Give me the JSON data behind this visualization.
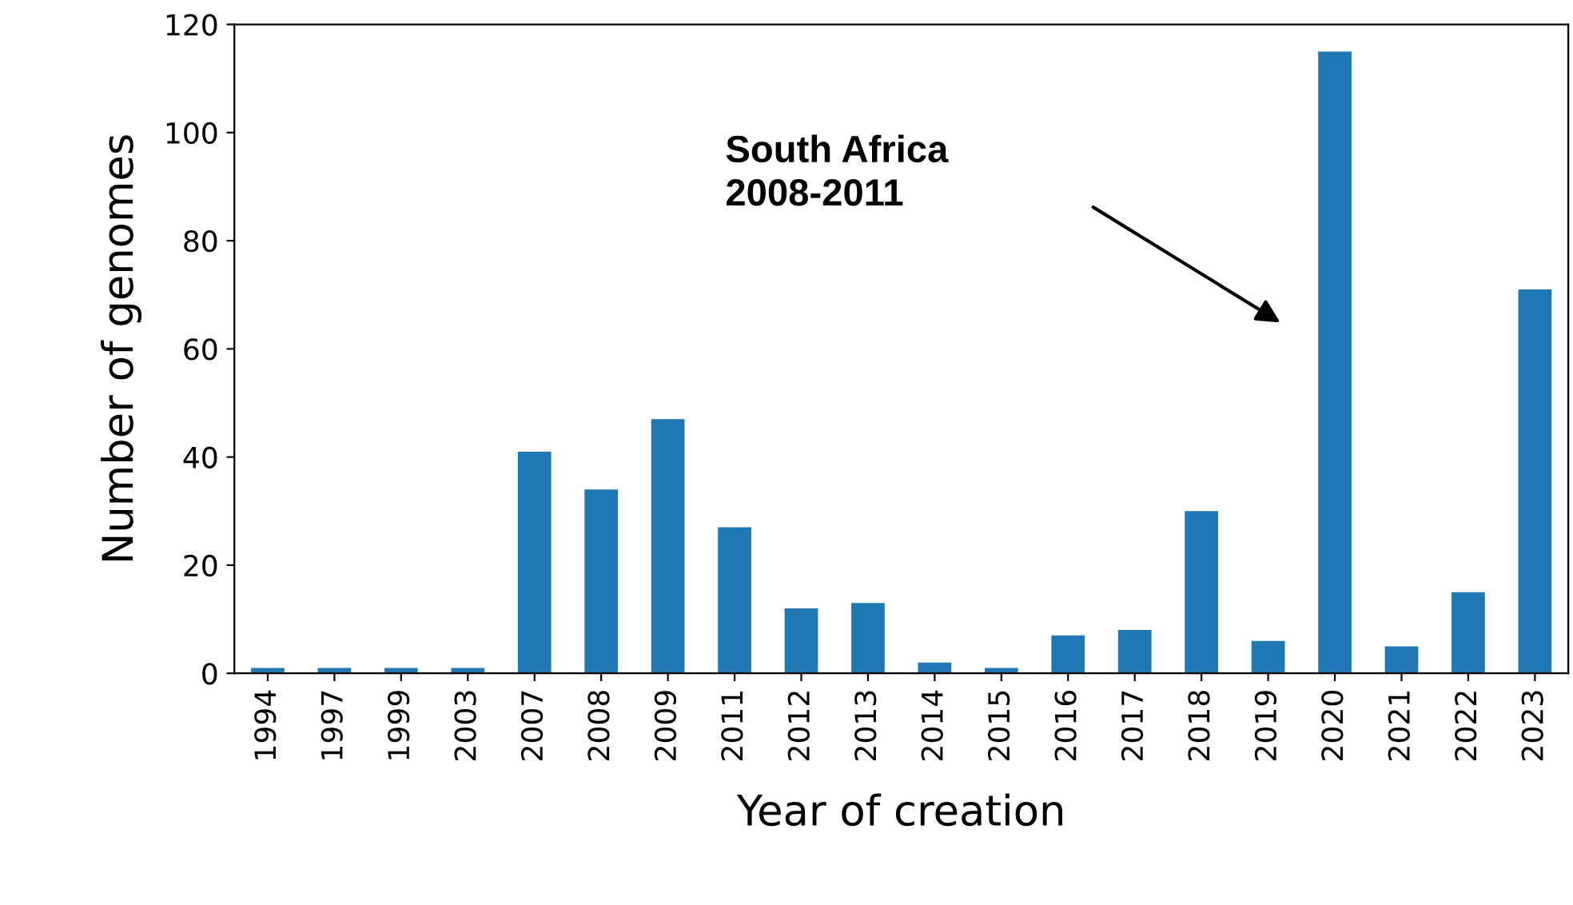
{
  "chart_data": {
    "type": "bar",
    "xlabel": "Year of creation",
    "ylabel": "Number of genomes",
    "categories": [
      "1994",
      "1997",
      "1999",
      "2003",
      "2007",
      "2008",
      "2009",
      "2011",
      "2012",
      "2013",
      "2014",
      "2015",
      "2016",
      "2017",
      "2018",
      "2019",
      "2020",
      "2021",
      "2022",
      "2023"
    ],
    "values": [
      1,
      1,
      1,
      1,
      41,
      34,
      47,
      27,
      12,
      13,
      2,
      1,
      7,
      8,
      30,
      6,
      115,
      5,
      15,
      71
    ],
    "color": "#1f77b4",
    "ylim": [
      0,
      120
    ],
    "yticks": [
      0,
      20,
      40,
      60,
      80,
      100,
      120
    ],
    "grid": false,
    "legend": false,
    "annotations": [
      "South Africa\n2008-2011"
    ]
  }
}
